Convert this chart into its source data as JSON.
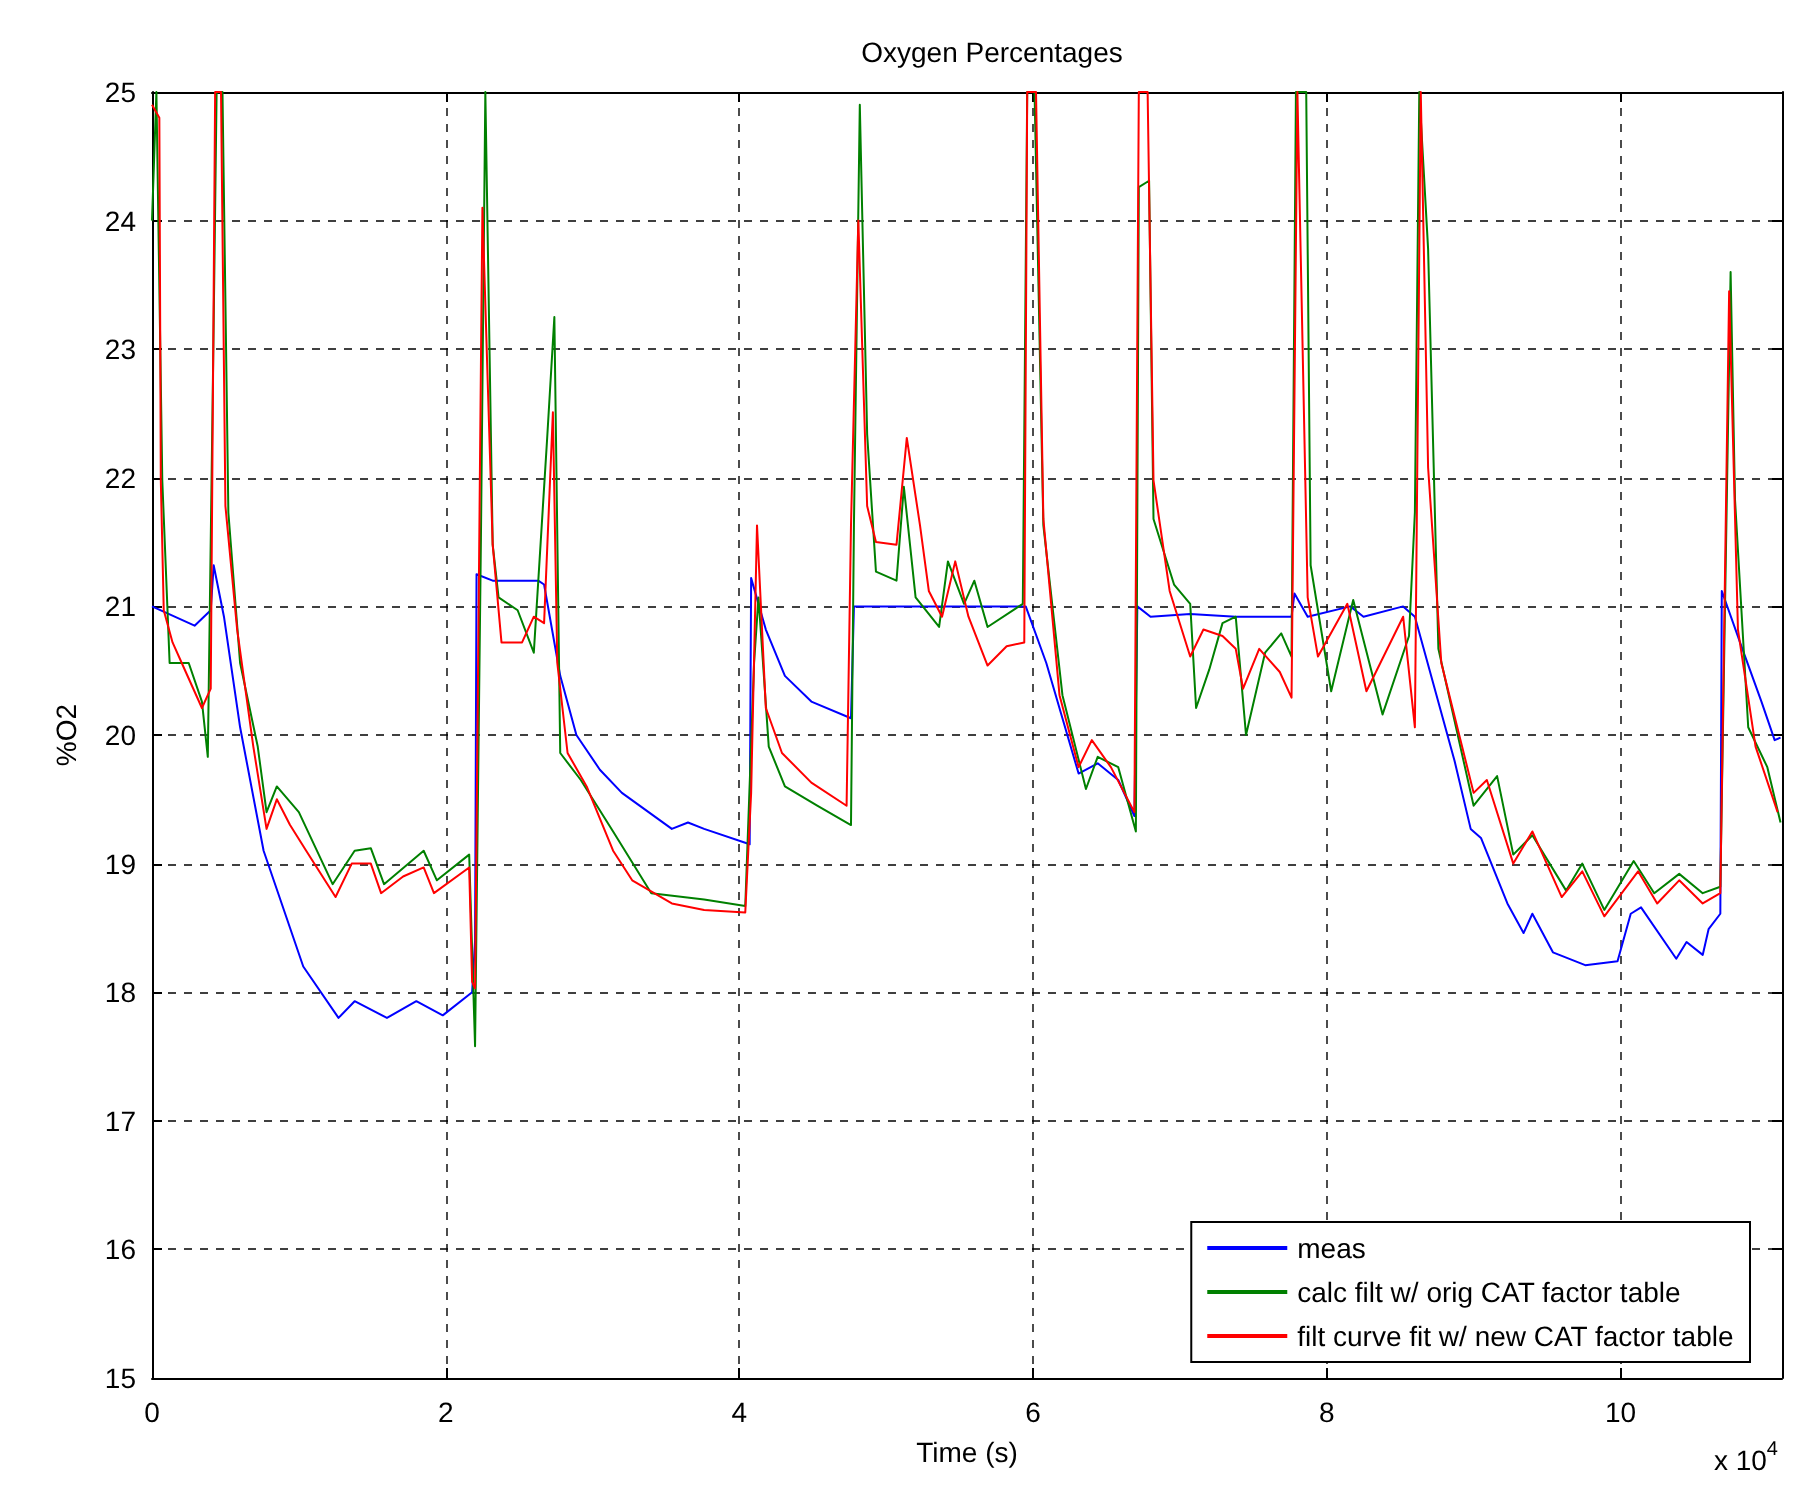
{
  "chart_data": {
    "type": "line",
    "title": "Oxygen Percentages",
    "xlabel": "Time (s)",
    "ylabel": "%O2",
    "annotations": [
      "x 10$^{4}$"
    ],
    "xlim": [
      0,
      11.1
    ],
    "xticks": [
      0,
      2,
      4,
      6,
      8,
      10
    ],
    "ylim": [
      15,
      25
    ],
    "yticks": [
      15,
      16,
      17,
      18,
      19,
      20,
      21,
      22,
      23,
      24,
      25
    ],
    "grid": true,
    "legend": "bottom right",
    "marker": "none",
    "line_style": "solid",
    "series": [
      {
        "name": "meas",
        "color": "#0000ff",
        "x": [
          0,
          0.29,
          0.4,
          0.42,
          0.49,
          0.6,
          0.76,
          1.03,
          1.27,
          1.38,
          1.6,
          1.8,
          1.98,
          2.18,
          2.2,
          2.21,
          2.32,
          2.63,
          2.67,
          2.78,
          2.89,
          3.05,
          3.2,
          3.54,
          3.65,
          3.76,
          4.07,
          4.08,
          4.18,
          4.31,
          4.49,
          4.76,
          4.78,
          5.95,
          6.09,
          6.31,
          6.44,
          6.58,
          6.69,
          6.71,
          6.8,
          7.07,
          7.38,
          7.76,
          7.78,
          7.87,
          8.16,
          8.25,
          8.52,
          8.6,
          8.87,
          8.98,
          9.05,
          9.23,
          9.34,
          9.4,
          9.54,
          9.76,
          9.98,
          10.07,
          10.14,
          10.38,
          10.45,
          10.56,
          10.6,
          10.68,
          10.69,
          10.83,
          10.96,
          11.05,
          11.09
        ],
        "values": [
          21.0,
          20.85,
          20.97,
          21.32,
          20.92,
          20.06,
          19.1,
          18.2,
          17.8,
          17.93,
          17.8,
          17.93,
          17.82,
          18.0,
          18.4,
          21.25,
          21.2,
          21.2,
          21.17,
          20.46,
          20.0,
          19.73,
          19.55,
          19.27,
          19.32,
          19.27,
          19.15,
          21.22,
          20.82,
          20.46,
          20.26,
          20.13,
          21.0,
          21.0,
          20.56,
          19.7,
          19.78,
          19.65,
          19.37,
          21.0,
          20.92,
          20.94,
          20.92,
          20.92,
          21.1,
          20.92,
          21.0,
          20.92,
          21.0,
          20.92,
          19.8,
          19.27,
          19.2,
          18.69,
          18.46,
          18.61,
          18.31,
          18.21,
          18.24,
          18.61,
          18.66,
          18.26,
          18.39,
          18.29,
          18.49,
          18.61,
          21.12,
          20.67,
          20.26,
          19.96,
          19.98
        ]
      },
      {
        "name": "calc filt w/ orig CAT factor table",
        "color": "#008000",
        "x": [
          0,
          0.03,
          0.07,
          0.12,
          0.25,
          0.34,
          0.38,
          0.42,
          0.44,
          0.48,
          0.52,
          0.6,
          0.72,
          0.78,
          0.85,
          1.0,
          1.23,
          1.38,
          1.49,
          1.58,
          1.85,
          1.94,
          2.16,
          2.2,
          2.24,
          2.27,
          2.32,
          2.36,
          2.49,
          2.6,
          2.69,
          2.74,
          2.78,
          2.92,
          3.14,
          3.4,
          3.76,
          4.04,
          4.1,
          4.13,
          4.2,
          4.31,
          4.53,
          4.76,
          4.78,
          4.82,
          4.87,
          4.93,
          5.07,
          5.12,
          5.2,
          5.36,
          5.42,
          5.53,
          5.6,
          5.69,
          5.93,
          5.96,
          6.01,
          6.07,
          6.2,
          6.36,
          6.44,
          6.58,
          6.7,
          6.72,
          6.79,
          6.82,
          6.96,
          7.07,
          7.11,
          7.2,
          7.29,
          7.38,
          7.45,
          7.58,
          7.69,
          7.76,
          7.79,
          7.86,
          7.89,
          8.03,
          8.18,
          8.38,
          8.56,
          8.6,
          8.63,
          8.69,
          8.76,
          9.0,
          9.16,
          9.27,
          9.4,
          9.63,
          9.74,
          9.89,
          10.09,
          10.23,
          10.4,
          10.56,
          10.68,
          10.75,
          10.78,
          10.87,
          11.0,
          11.09
        ],
        "values": [
          24.0,
          25,
          21.98,
          20.56,
          20.56,
          20.26,
          19.83,
          23.2,
          25,
          25,
          21.73,
          20.56,
          19.91,
          19.4,
          19.6,
          19.4,
          18.84,
          19.1,
          19.12,
          18.84,
          19.1,
          18.87,
          19.07,
          17.58,
          21.53,
          25,
          21.48,
          21.07,
          20.97,
          20.64,
          22.29,
          23.25,
          19.86,
          19.65,
          19.25,
          18.77,
          18.72,
          18.67,
          20.56,
          21.07,
          19.91,
          19.6,
          19.45,
          19.3,
          21.63,
          24.9,
          22.34,
          21.27,
          21.2,
          21.93,
          21.07,
          20.84,
          21.35,
          21.02,
          21.2,
          20.84,
          21.02,
          25,
          25,
          21.63,
          20.31,
          19.58,
          19.83,
          19.75,
          19.25,
          24.26,
          24.31,
          21.68,
          21.17,
          21.02,
          20.21,
          20.51,
          20.87,
          20.92,
          20.0,
          20.64,
          20.79,
          20.61,
          25,
          25,
          21.32,
          20.34,
          21.05,
          20.16,
          20.77,
          21.73,
          25,
          23.78,
          20.67,
          19.45,
          19.68,
          19.07,
          19.22,
          18.79,
          19.0,
          18.64,
          19.02,
          18.77,
          18.92,
          18.77,
          18.82,
          23.6,
          21.83,
          20.06,
          19.75,
          19.32
        ]
      },
      {
        "name": "filt curve fit w/ new CAT factor table",
        "color": "#ff0000",
        "x": [
          0,
          0.05,
          0.06,
          0.08,
          0.14,
          0.23,
          0.34,
          0.4,
          0.43,
          0.47,
          0.5,
          0.58,
          0.69,
          0.78,
          0.85,
          0.94,
          1.05,
          1.25,
          1.36,
          1.49,
          1.56,
          1.71,
          1.85,
          1.92,
          2.16,
          2.18,
          2.2,
          2.25,
          2.32,
          2.38,
          2.52,
          2.6,
          2.67,
          2.73,
          2.76,
          2.83,
          2.96,
          3.14,
          3.27,
          3.54,
          3.76,
          4.04,
          4.08,
          4.12,
          4.18,
          4.29,
          4.49,
          4.73,
          4.76,
          4.81,
          4.87,
          4.93,
          5.07,
          5.14,
          5.23,
          5.29,
          5.38,
          5.47,
          5.56,
          5.69,
          5.82,
          5.94,
          5.96,
          6.02,
          6.07,
          6.18,
          6.31,
          6.4,
          6.53,
          6.69,
          6.72,
          6.78,
          6.82,
          6.93,
          7.07,
          7.16,
          7.29,
          7.38,
          7.43,
          7.54,
          7.68,
          7.76,
          7.8,
          7.87,
          7.94,
          8.14,
          8.27,
          8.52,
          8.6,
          8.64,
          8.69,
          8.78,
          9.0,
          9.09,
          9.27,
          9.4,
          9.6,
          9.74,
          9.89,
          10.12,
          10.25,
          10.4,
          10.56,
          10.68,
          10.74,
          10.8,
          10.92,
          11.07
        ],
        "values": [
          24.9,
          24.8,
          21.98,
          20.97,
          20.72,
          20.49,
          20.21,
          20.36,
          25,
          25,
          21.78,
          20.82,
          19.91,
          19.27,
          19.5,
          19.3,
          19.1,
          18.74,
          19.0,
          19.0,
          18.77,
          18.9,
          18.97,
          18.77,
          18.97,
          18.08,
          18.03,
          24.1,
          21.48,
          20.72,
          20.72,
          20.92,
          20.87,
          22.51,
          20.56,
          19.86,
          19.6,
          19.1,
          18.87,
          18.69,
          18.64,
          18.62,
          19.55,
          21.63,
          20.21,
          19.86,
          19.63,
          19.45,
          21.63,
          24.0,
          21.78,
          21.5,
          21.48,
          22.31,
          21.63,
          21.12,
          20.92,
          21.35,
          20.92,
          20.54,
          20.69,
          20.72,
          25,
          25,
          21.68,
          20.31,
          19.75,
          19.96,
          19.75,
          19.4,
          25,
          25,
          21.98,
          21.12,
          20.61,
          20.82,
          20.77,
          20.67,
          20.36,
          20.67,
          20.49,
          20.29,
          25,
          21.07,
          20.61,
          21.02,
          20.34,
          20.92,
          20.06,
          25,
          22.08,
          20.56,
          19.55,
          19.65,
          19.0,
          19.25,
          18.74,
          18.94,
          18.59,
          18.94,
          18.69,
          18.87,
          18.69,
          18.77,
          23.45,
          20.82,
          19.91,
          19.4
        ]
      }
    ]
  }
}
